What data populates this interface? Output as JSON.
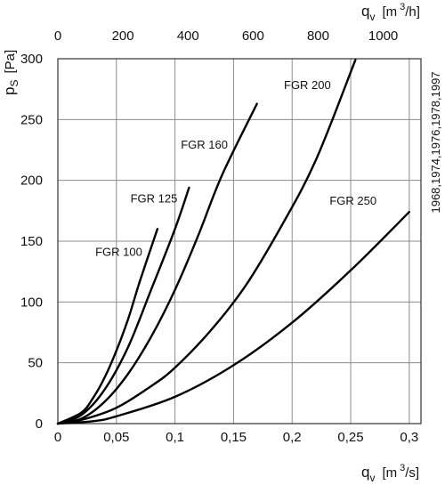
{
  "chart_data": {
    "type": "line",
    "y_axis": {
      "label_main": "p",
      "label_sub": "S",
      "label_unit": "[Pa]",
      "range": [
        0,
        300
      ],
      "ticks": [
        0,
        50,
        100,
        150,
        200,
        250,
        300
      ]
    },
    "x_axis_bottom": {
      "label_main": "q",
      "label_sub": "v",
      "label_unit_pre": "[m",
      "label_unit_sup": "3",
      "label_unit_post": "/s]",
      "range": [
        0,
        0.31
      ],
      "ticks": [
        0,
        0.05,
        0.1,
        0.15,
        0.2,
        0.25,
        0.3
      ],
      "tick_labels": [
        "0",
        "0,05",
        "0,1",
        "0,15",
        "0,2",
        "0,25",
        "0,3"
      ]
    },
    "x_axis_top": {
      "label_main": "q",
      "label_sub": "v",
      "label_unit_pre": "[m",
      "label_unit_sup": "3",
      "label_unit_post": "/h]",
      "range": [
        0,
        1116
      ],
      "ticks": [
        0,
        200,
        400,
        600,
        800,
        1000
      ],
      "tick_labels": [
        "0",
        "200",
        "400",
        "600",
        "800",
        "1000"
      ]
    },
    "side_note": "1968,1974,1976,1978,1997",
    "grid": true,
    "series": [
      {
        "name": "FGR 100",
        "points": [
          [
            0,
            0
          ],
          [
            0.02,
            9
          ],
          [
            0.03,
            21
          ],
          [
            0.04,
            38
          ],
          [
            0.05,
            60
          ],
          [
            0.06,
            86
          ],
          [
            0.07,
            117
          ],
          [
            0.085,
            160
          ]
        ]
      },
      {
        "name": "FGR 125",
        "points": [
          [
            0,
            0
          ],
          [
            0.02,
            7
          ],
          [
            0.04,
            28
          ],
          [
            0.06,
            63
          ],
          [
            0.08,
            111
          ],
          [
            0.1,
            160
          ],
          [
            0.112,
            194
          ]
        ]
      },
      {
        "name": "FGR 160",
        "points": [
          [
            0,
            0
          ],
          [
            0.02,
            4
          ],
          [
            0.04,
            18
          ],
          [
            0.06,
            41
          ],
          [
            0.08,
            72
          ],
          [
            0.1,
            110
          ],
          [
            0.12,
            155
          ],
          [
            0.14,
            204
          ],
          [
            0.17,
            263
          ]
        ]
      },
      {
        "name": "FGR 200",
        "points": [
          [
            0,
            0
          ],
          [
            0.02,
            3
          ],
          [
            0.05,
            13
          ],
          [
            0.08,
            31
          ],
          [
            0.1,
            46
          ],
          [
            0.13,
            76
          ],
          [
            0.16,
            113
          ],
          [
            0.19,
            161
          ],
          [
            0.22,
            216
          ],
          [
            0.254,
            299
          ]
        ]
      },
      {
        "name": "FGR 250",
        "points": [
          [
            0,
            0
          ],
          [
            0.03,
            2
          ],
          [
            0.05,
            6
          ],
          [
            0.1,
            22
          ],
          [
            0.15,
            48
          ],
          [
            0.2,
            83
          ],
          [
            0.25,
            126
          ],
          [
            0.3,
            174
          ]
        ]
      }
    ]
  }
}
